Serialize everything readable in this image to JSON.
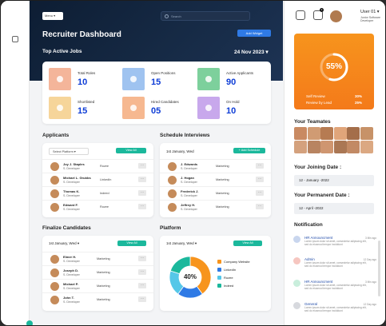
{
  "header": {
    "menu_label": "Menu",
    "search_placeholder": "Search",
    "title": "Recruiter Dashboard",
    "add_widget": "Add Widget",
    "subtitle": "Top Active Jobs",
    "date": "24 Nov 2023"
  },
  "colors": {
    "blue_num": "#0d3cd6",
    "accent_green": "#1bb89c",
    "accent_orange": "#f7941d"
  },
  "stats": [
    {
      "label": "Total Roles",
      "value": "10",
      "color": "#f4b59a"
    },
    {
      "label": "Open Positions",
      "value": "15",
      "color": "#9fc3f0"
    },
    {
      "label": "Active Applicants",
      "value": "90",
      "color": "#7dd09c"
    },
    {
      "label": "Shortlisted",
      "value": "15",
      "color": "#f6d59a"
    },
    {
      "label": "Hired Candidates",
      "value": "05",
      "color": "#f6b890"
    },
    {
      "label": "On Hold",
      "value": "10",
      "color": "#c8a8ec"
    }
  ],
  "applicants": {
    "heading": "Applicants",
    "filter": "Select Platform",
    "view_all": "View All",
    "rows": [
      {
        "name": "Joy J. Staples",
        "role": "S. Developer",
        "status": "Rozee"
      },
      {
        "name": "Michael L. Grubbs",
        "role": "S. Developer",
        "status": "LinkedIn"
      },
      {
        "name": "Thomas K.",
        "role": "S. Developer",
        "status": "Indeed"
      },
      {
        "name": "Edward F.",
        "role": "S. Developer",
        "status": "Rozee"
      }
    ]
  },
  "interviews": {
    "heading": "Schedule Interviews",
    "date": "1st January, Wed",
    "add_label": "+ Add Schedule",
    "rows": [
      {
        "name": "J. Edwards",
        "role": "S. Developer",
        "status": "Marketing"
      },
      {
        "name": "J. Hogan",
        "role": "S. Developer",
        "status": "Marketing"
      },
      {
        "name": "Frederick J.",
        "role": "S. Developer",
        "status": "Marketing"
      },
      {
        "name": "Jeffrey H.",
        "role": "S. Developer",
        "status": "Marketing"
      }
    ]
  },
  "finalize": {
    "heading": "Finalize Candidates",
    "date": "1st January, Wed",
    "view_all": "View All",
    "rows": [
      {
        "name": "Elmer H.",
        "role": "S. Developer",
        "status": "Marketing"
      },
      {
        "name": "Joseph D.",
        "role": "S. Developer",
        "status": "Marketing"
      },
      {
        "name": "Michael P.",
        "role": "S. Developer",
        "status": "Marketing"
      },
      {
        "name": "John T.",
        "role": "S. Developer",
        "status": "Marketing"
      }
    ]
  },
  "platform": {
    "heading": "Platform",
    "date": "1st January, Wed",
    "view_all": "View All",
    "center_label": "40%",
    "legend": [
      {
        "label": "Company Website",
        "color": "#f7941d",
        "value": 40
      },
      {
        "label": "LinkedIn",
        "color": "#2f7ae5",
        "value": 20
      },
      {
        "label": "Rozee",
        "color": "#55c7e8",
        "value": 20
      },
      {
        "label": "Indeed",
        "color": "#1bb89c",
        "value": 20
      }
    ]
  },
  "user": {
    "name": "User 01",
    "role": "Junior Software Developer",
    "notif_count": "3"
  },
  "score": {
    "percent": "55%",
    "percent_value": 55,
    "self_label": "Self Review",
    "self_value": "30%",
    "lead_label": "Review by Lead",
    "lead_value": "25%"
  },
  "team": {
    "heading": "Your Teamates",
    "members": [
      "#c98a62",
      "#d09b73",
      "#b67b52",
      "#e0a57a",
      "#a46e4a",
      "#c79268",
      "#d4a17d",
      "#b88461",
      "#cf9670",
      "#aa7754",
      "#c28a65",
      "#dba882"
    ]
  },
  "joining": {
    "heading": "Your Joining Date :",
    "value": "12 - January -2022"
  },
  "permanent": {
    "heading": "Your Permanent Date :",
    "value": "12 - April -2022"
  },
  "notifications": {
    "heading": "Notification",
    "items": [
      {
        "title": "HR Announcment",
        "msg": "Lorem ipsum dolor sit amet, consectetur adipiscing elit, sed do eiusmod tempor incididunt",
        "time": "3 Min ago",
        "color": "#c9d6ee"
      },
      {
        "title": "Admin",
        "msg": "Lorem ipsum dolor sit amet, consectetur adipiscing elit, sed do eiusmod tempor incididunt",
        "time": "12 Day ago",
        "color": "#f6c6c0"
      },
      {
        "title": "HR Announcment",
        "msg": "Lorem ipsum dolor sit amet, consectetur adipiscing elit, sed do eiusmod tempor incididunt",
        "time": "3 Min ago",
        "color": "#c9eedc"
      },
      {
        "title": "General",
        "msg": "Lorem ipsum dolor sit amet, consectetur adipiscing elit, sed do eiusmod tempor incididunt",
        "time": "12 Day ago",
        "color": "#d7d9de"
      }
    ]
  }
}
